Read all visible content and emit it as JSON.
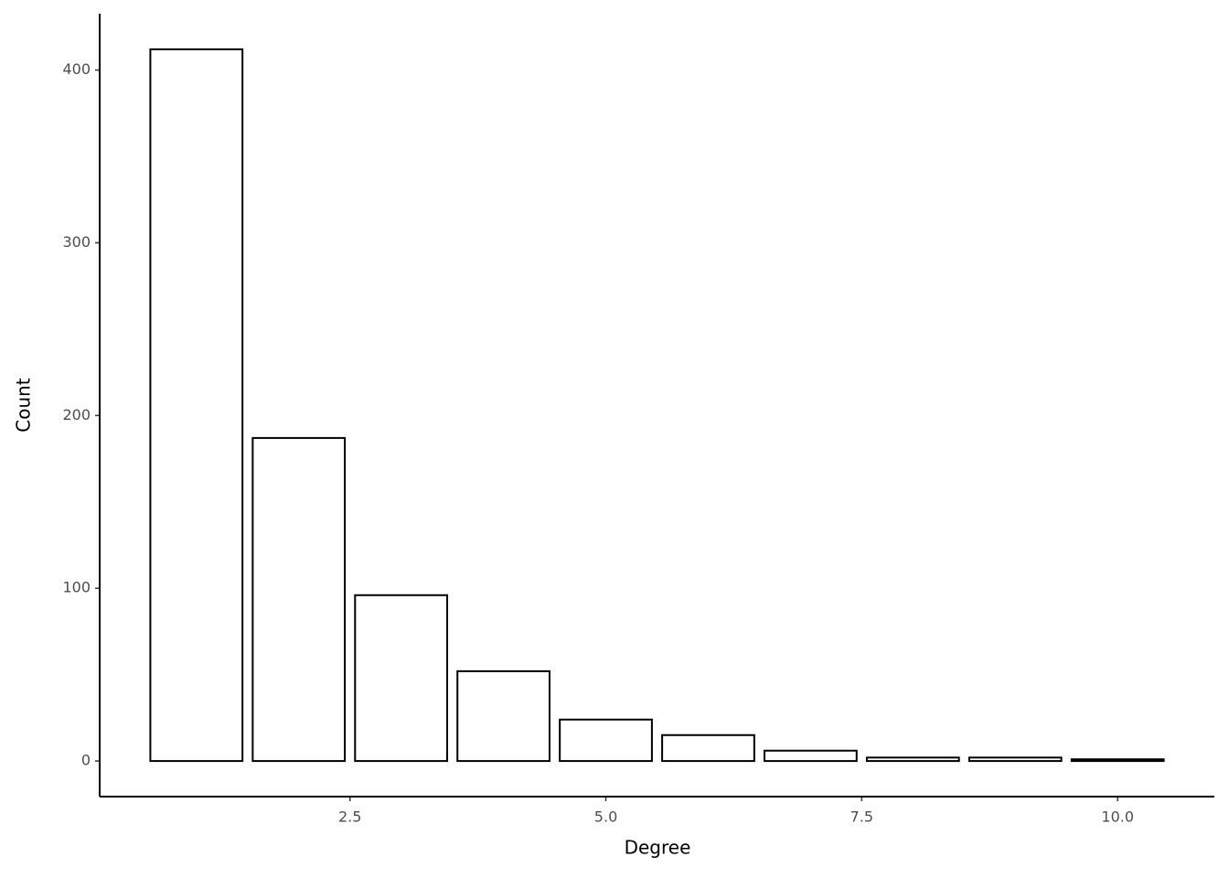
{
  "chart_data": {
    "type": "bar",
    "x_label": "Degree",
    "y_label": "Count",
    "x": [
      1,
      2,
      3,
      4,
      5,
      6,
      7,
      8,
      9,
      10
    ],
    "values": [
      412,
      187,
      96,
      52,
      24,
      15,
      6,
      2,
      2,
      1
    ],
    "color": "#ffffff",
    "edgecolor": "#000000",
    "xlim": [
      0.055,
      10.945
    ],
    "ylim": [
      -20.6,
      432.6
    ],
    "xticks": [
      2.5,
      {
        "value": 5,
        "label": "5.0"
      },
      7.5,
      {
        "value": 10,
        "label": "10.0"
      }
    ],
    "yticks": [
      0,
      100,
      200,
      300,
      400
    ],
    "grid": false
  }
}
